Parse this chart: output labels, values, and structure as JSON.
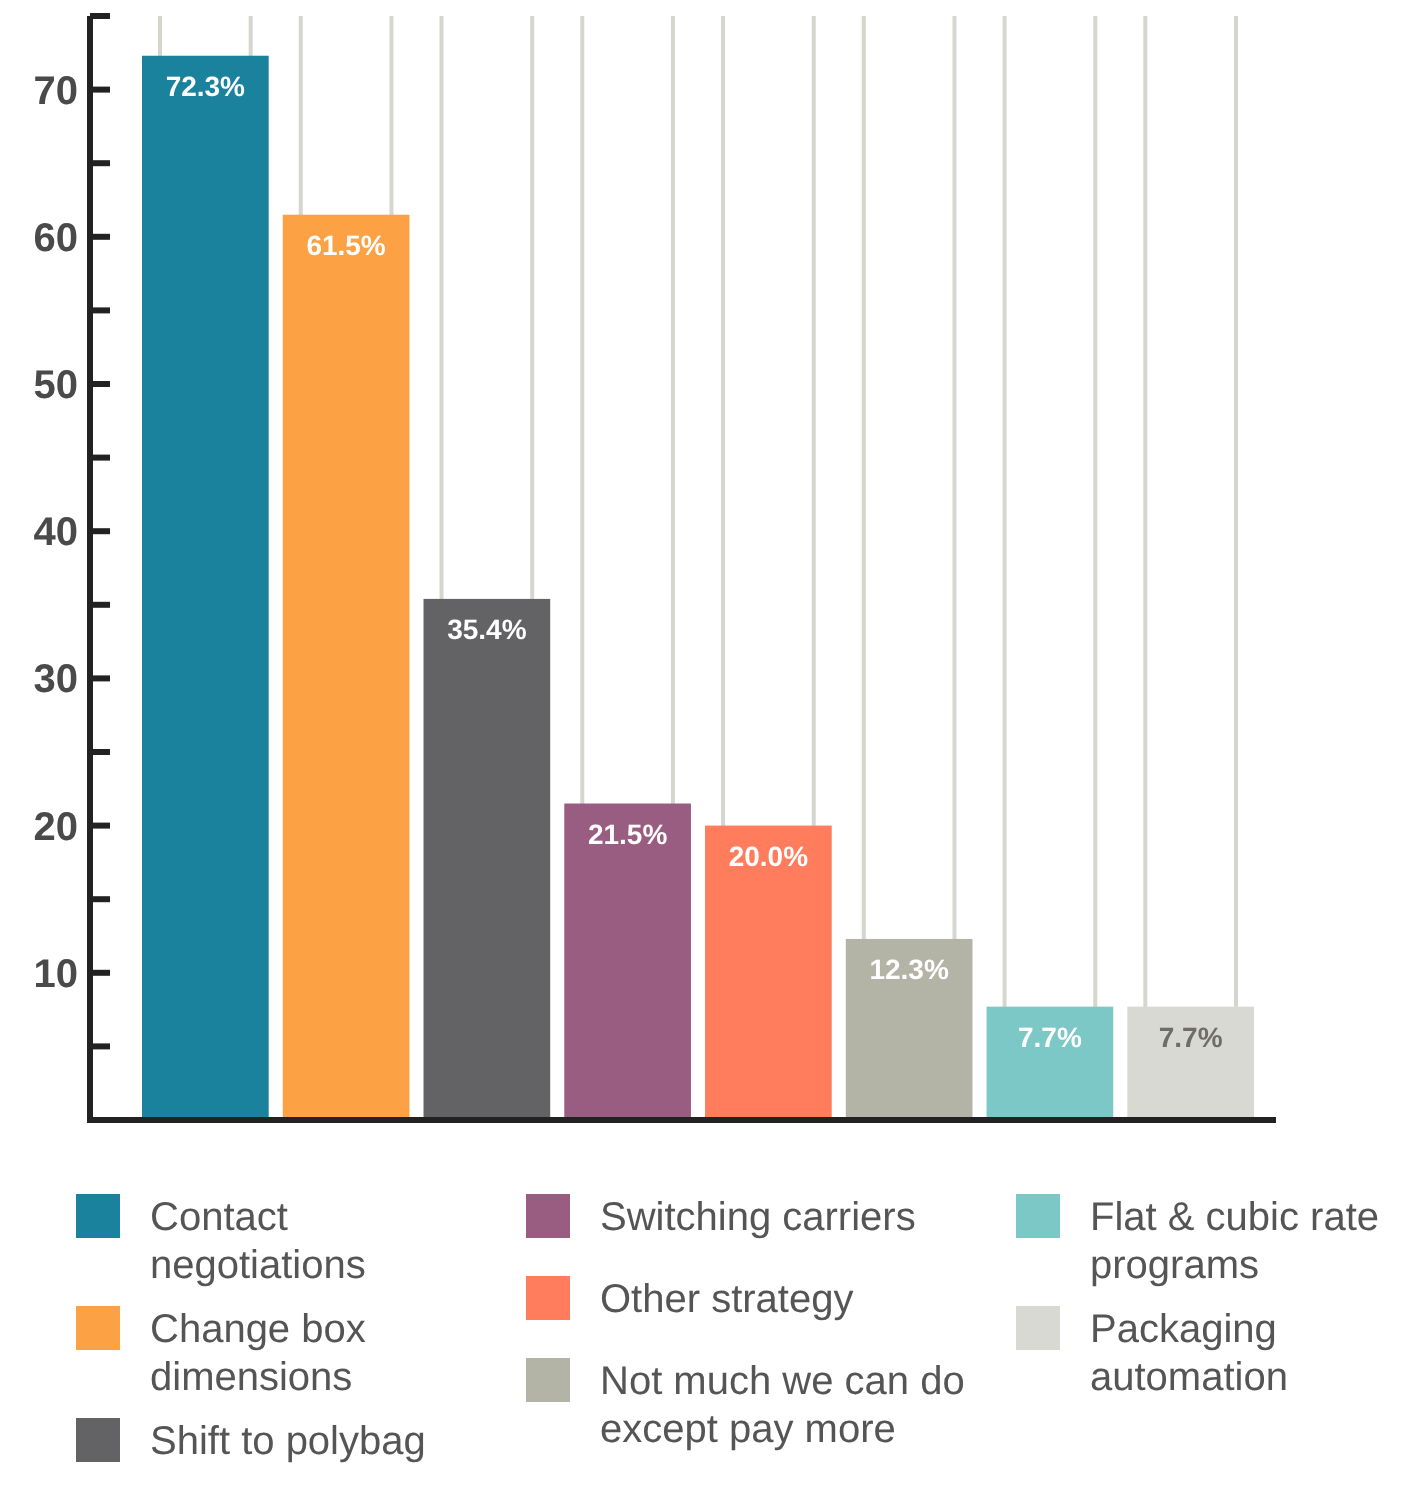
{
  "chart_data": {
    "type": "bar",
    "categories": [
      null
    ],
    "series": [
      {
        "name": "Contact negotiations",
        "color": "#1a829c",
        "values": [
          72.3
        ],
        "value_labels": [
          "72.3%"
        ]
      },
      {
        "name": "Change box dimensions",
        "color": "#fda145",
        "values": [
          61.5
        ],
        "value_labels": [
          "61.5%"
        ]
      },
      {
        "name": "Shift to polybag",
        "color": "#636265",
        "values": [
          35.4
        ],
        "value_labels": [
          "35.4%"
        ]
      },
      {
        "name": "Switching carriers",
        "color": "#9a5d82",
        "values": [
          21.5
        ],
        "value_labels": [
          "21.5%"
        ]
      },
      {
        "name": "Other strategy",
        "color": "#ff7c5c",
        "values": [
          20.0
        ],
        "value_labels": [
          "20.0%"
        ]
      },
      {
        "name": "Not much we can do except pay more",
        "color": "#b4b4a6",
        "values": [
          12.3
        ],
        "value_labels": [
          "12.3%"
        ]
      },
      {
        "name": "Flat & cubic rate programs",
        "color": "#7bc8c6",
        "values": [
          7.7
        ],
        "value_labels": [
          "7.7%"
        ]
      },
      {
        "name": "Packaging automation",
        "color": "#d9d9d3",
        "values": [
          7.7
        ],
        "value_labels": [
          "7.7%"
        ]
      }
    ],
    "ylim": [
      0,
      75
    ],
    "yticks": [
      {
        "value": 5,
        "label": null
      },
      10,
      {
        "value": 15,
        "label": null
      },
      20,
      {
        "value": 25,
        "label": null
      },
      30,
      {
        "value": 35,
        "label": null
      },
      40,
      {
        "value": 45,
        "label": null
      },
      50,
      {
        "value": 55,
        "label": null
      },
      60,
      {
        "value": 65,
        "label": null
      },
      70,
      {
        "value": 75,
        "label": null
      }
    ],
    "grid": "x",
    "legend": "bottom",
    "tick_labels": "y"
  }
}
